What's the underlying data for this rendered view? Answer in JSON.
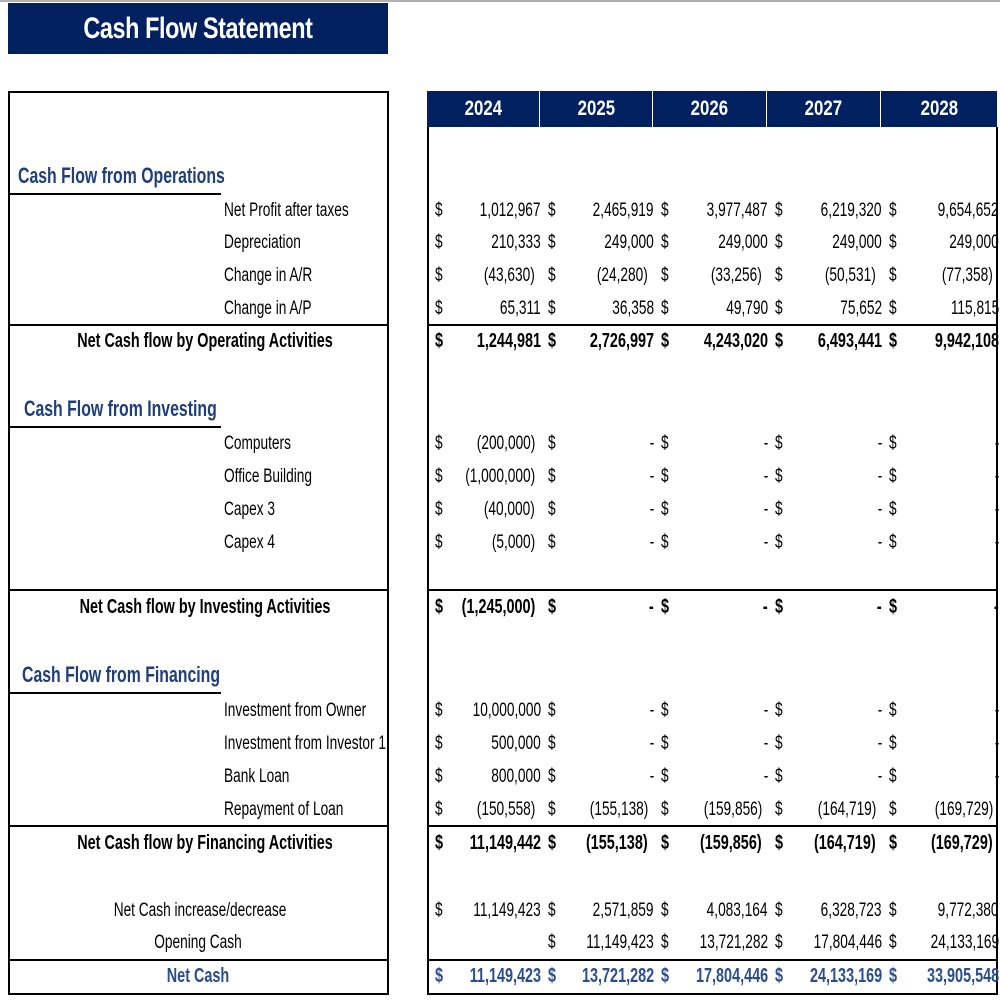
{
  "title": "Cash Flow Statement",
  "years": [
    "2024",
    "2025",
    "2026",
    "2027",
    "2028"
  ],
  "currency_symbol": "$",
  "colors": {
    "header_bg": "#002060",
    "section_text": "#1f3f7a",
    "net_cash_text": "#2a4d8f"
  },
  "rows": [
    {
      "kind": "section",
      "label": "Cash Flow from Operations"
    },
    {
      "kind": "item",
      "label": "Net Profit after taxes",
      "values": [
        "1,012,967",
        "2,465,919",
        "3,977,487",
        "6,219,320",
        "9,654,652"
      ]
    },
    {
      "kind": "item",
      "label": "Depreciation",
      "values": [
        "210,333",
        "249,000",
        "249,000",
        "249,000",
        "249,000"
      ]
    },
    {
      "kind": "item",
      "label": "Change in A/R",
      "values": [
        "(43,630)",
        "(24,280)",
        "(33,256)",
        "(50,531)",
        "(77,358)"
      ]
    },
    {
      "kind": "item",
      "label": "Change in A/P",
      "values": [
        "65,311",
        "36,358",
        "49,790",
        "75,652",
        "115,815"
      ]
    },
    {
      "kind": "total",
      "label": "Net Cash flow by Operating Activities",
      "values": [
        "1,244,981",
        "2,726,997",
        "4,243,020",
        "6,493,441",
        "9,942,108"
      ]
    },
    {
      "kind": "section",
      "label": "Cash Flow from Investing"
    },
    {
      "kind": "item",
      "label": "Computers",
      "values": [
        "(200,000)",
        "-",
        "-",
        "-",
        "-"
      ]
    },
    {
      "kind": "item",
      "label": "Office Building",
      "values": [
        "(1,000,000)",
        "-",
        "-",
        "-",
        "-"
      ]
    },
    {
      "kind": "item",
      "label": "Capex 3",
      "values": [
        "(40,000)",
        "-",
        "-",
        "-",
        "-"
      ]
    },
    {
      "kind": "item",
      "label": "Capex 4",
      "values": [
        "(5,000)",
        "-",
        "-",
        "-",
        "-"
      ]
    },
    {
      "kind": "total",
      "label": "Net Cash flow by Investing Activities",
      "values": [
        "(1,245,000)",
        "-",
        "-",
        "-",
        "-"
      ]
    },
    {
      "kind": "section",
      "label": "Cash Flow from Financing"
    },
    {
      "kind": "item",
      "label": "Investment from Owner",
      "values": [
        "10,000,000",
        "-",
        "-",
        "-",
        "-"
      ]
    },
    {
      "kind": "item",
      "label": "Investment from Investor 1",
      "values": [
        "500,000",
        "-",
        "-",
        "-",
        "-"
      ]
    },
    {
      "kind": "item",
      "label": "Bank Loan",
      "values": [
        "800,000",
        "-",
        "-",
        "-",
        "-"
      ]
    },
    {
      "kind": "item",
      "label": "Repayment of Loan",
      "values": [
        "(150,558)",
        "(155,138)",
        "(159,856)",
        "(164,719)",
        "(169,729)"
      ]
    },
    {
      "kind": "total",
      "label": "Net Cash flow by Financing Activities",
      "values": [
        "11,149,442",
        "(155,138)",
        "(159,856)",
        "(164,719)",
        "(169,729)"
      ]
    },
    {
      "kind": "summary",
      "label": "Net Cash increase/decrease",
      "values": [
        "11,149,423",
        "2,571,859",
        "4,083,164",
        "6,328,723",
        "9,772,380"
      ]
    },
    {
      "kind": "summary",
      "label": "Opening Cash",
      "values": [
        "",
        "11,149,423",
        "13,721,282",
        "17,804,446",
        "24,133,169"
      ]
    },
    {
      "kind": "net",
      "label": "Net Cash",
      "values": [
        "11,149,423",
        "13,721,282",
        "17,804,446",
        "24,133,169",
        "33,905,548"
      ]
    }
  ]
}
